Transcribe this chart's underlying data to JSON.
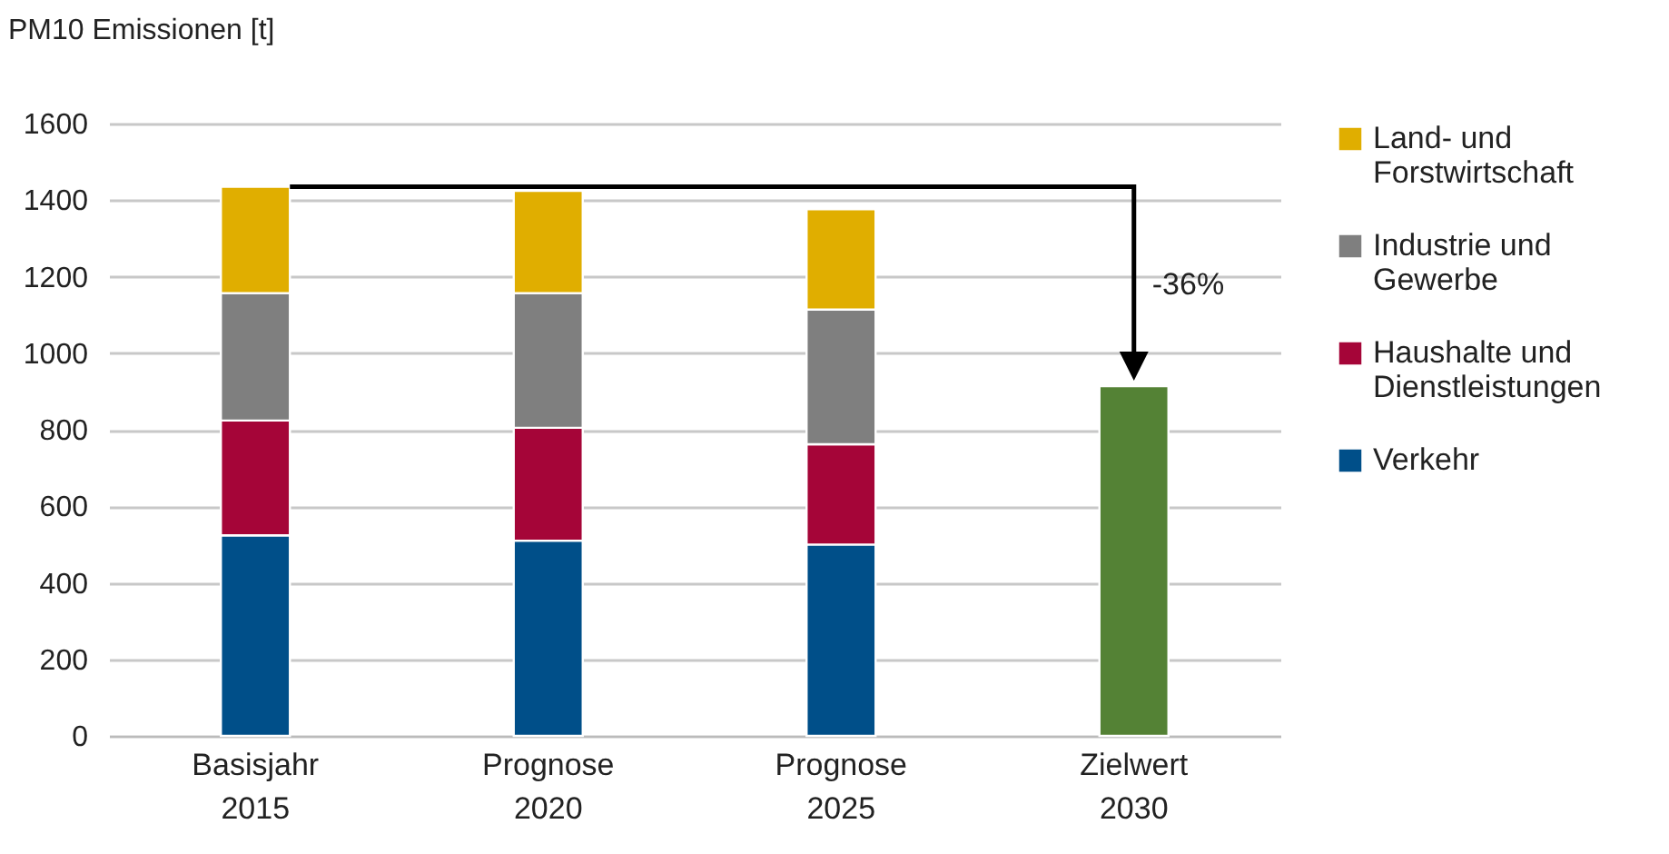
{
  "chart_data": {
    "type": "bar",
    "ylabel": "PM10 Emissionen [t]",
    "categories": [
      "Basisjahr 2015",
      "Prognose 2020",
      "Prognose 2025",
      "Zielwert 2030"
    ],
    "stacked": true,
    "series": [
      {
        "name": "Verkehr",
        "color": "#004f89",
        "values": [
          524,
          510,
          500,
          null
        ]
      },
      {
        "name": "Haushalte und Dienstleistungen",
        "color": "#a50538",
        "values": [
          300,
          295,
          262,
          null
        ]
      },
      {
        "name": "Industrie und Gewerbe",
        "color": "#7f7f7f",
        "values": [
          333,
          352,
          352,
          null
        ]
      },
      {
        "name": "Land- und Forstwirtschaft",
        "color": "#e0ae00",
        "values": [
          278,
          267,
          262,
          null
        ]
      },
      {
        "color": "#548235",
        "values": [
          null,
          null,
          null,
          914
        ]
      }
    ],
    "ylim": [
      0,
      1600
    ],
    "yticks": [
      0,
      200,
      400,
      600,
      800,
      1000,
      1200,
      1400,
      1600
    ],
    "grid": "y",
    "legend": "right",
    "annotations": [
      "-36%"
    ]
  }
}
